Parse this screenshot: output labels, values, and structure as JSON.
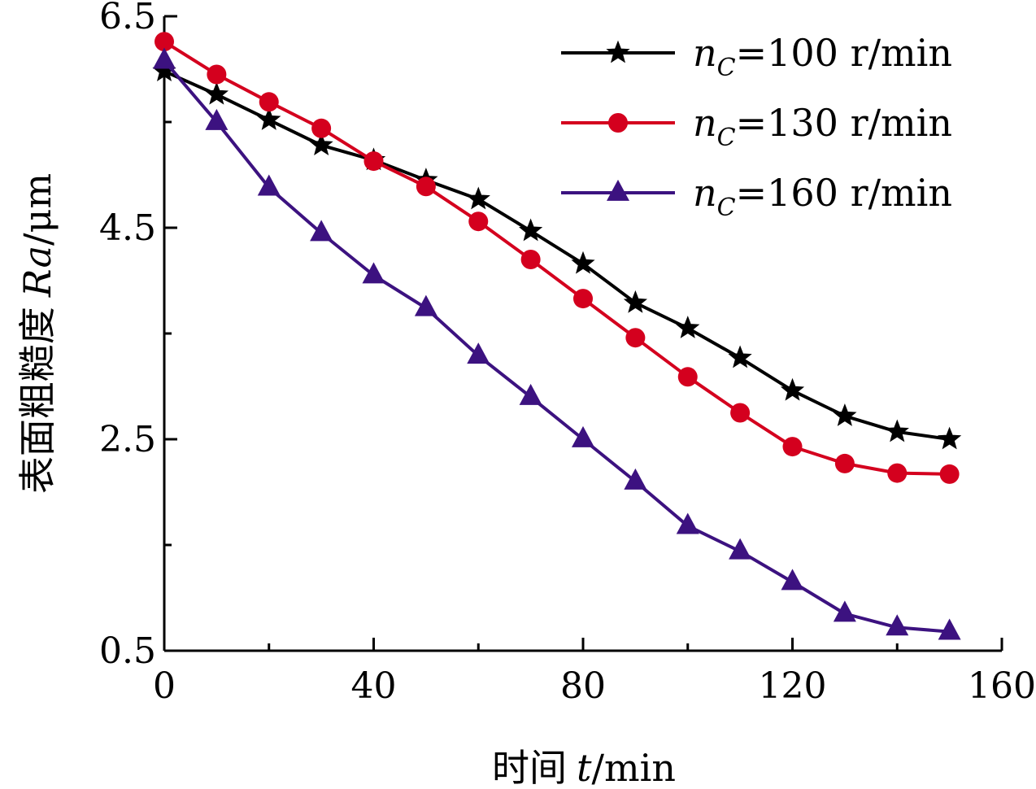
{
  "chart_data": {
    "type": "line",
    "xlabel_cn": "时间",
    "xlabel_var": "t",
    "xlabel_unit": "/min",
    "ylabel_cn": "表面粗糙度",
    "ylabel_var": "Ra",
    "ylabel_unit": "/μm",
    "xlim": [
      0,
      160
    ],
    "ylim": [
      0.5,
      6.5
    ],
    "xticks": [
      0,
      40,
      80,
      120,
      160
    ],
    "xtick_labels": [
      "0",
      "40",
      "80",
      "120",
      "160"
    ],
    "yticks": [
      0.5,
      2.5,
      4.5,
      6.5
    ],
    "ytick_labels": [
      "0.5",
      "2.5",
      "4.5",
      "6.5"
    ],
    "x": [
      0,
      10,
      20,
      30,
      40,
      50,
      60,
      70,
      80,
      90,
      100,
      110,
      120,
      130,
      140,
      150
    ],
    "legend_position": "top-right",
    "grid": false,
    "series": [
      {
        "var": "n",
        "sub": "C",
        "rest": "=100 r/min",
        "color": "#000000",
        "marker": "star",
        "values": [
          5.98,
          5.76,
          5.52,
          5.28,
          5.14,
          4.95,
          4.77,
          4.47,
          4.16,
          3.79,
          3.55,
          3.27,
          2.96,
          2.72,
          2.57,
          2.5
        ]
      },
      {
        "var": "n",
        "sub": "C",
        "rest": "=130 r/min",
        "color": "#d4001e",
        "marker": "circle",
        "values": [
          6.26,
          5.95,
          5.69,
          5.44,
          5.13,
          4.89,
          4.56,
          4.2,
          3.83,
          3.46,
          3.09,
          2.75,
          2.43,
          2.27,
          2.18,
          2.17
        ]
      },
      {
        "var": "n",
        "sub": "C",
        "rest": "=160 r/min",
        "color": "#3c1280",
        "marker": "triangle",
        "values": [
          6.08,
          5.5,
          4.88,
          4.45,
          4.05,
          3.74,
          3.29,
          2.9,
          2.5,
          2.1,
          1.68,
          1.44,
          1.15,
          0.85,
          0.72,
          0.68
        ]
      }
    ]
  }
}
